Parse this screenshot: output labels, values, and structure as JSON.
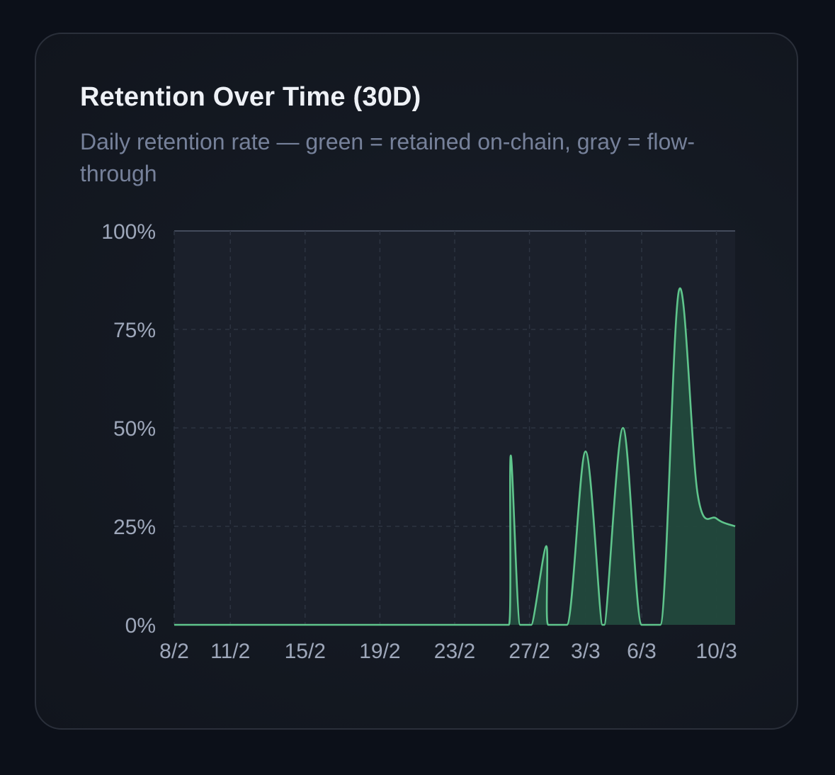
{
  "card": {
    "title": "Retention Over Time (30D)",
    "subtitle": "Daily retention rate — green = retained on-chain, gray = flow-through"
  },
  "colors": {
    "retained_line": "#5fc58c",
    "retained_fill": "#22493c",
    "grid": "#2d3441",
    "top_line": "#444b5c"
  },
  "chart_data": {
    "type": "area",
    "title": "Retention Over Time (30D)",
    "xlabel": "",
    "ylabel": "",
    "ylim": [
      0,
      100
    ],
    "yticks": [
      0,
      25,
      50,
      75,
      100
    ],
    "ytick_labels": [
      "0%",
      "25%",
      "50%",
      "75%",
      "100%"
    ],
    "x_range": [
      0,
      30
    ],
    "xticks": [
      0,
      3,
      7,
      11,
      15,
      19,
      22,
      25,
      29
    ],
    "xtick_labels": [
      "8/2",
      "11/2",
      "15/2",
      "19/2",
      "23/2",
      "27/2",
      "3/3",
      "6/3",
      "10/3"
    ],
    "grid": true,
    "series": [
      {
        "name": "Retained on-chain",
        "x": [
          0,
          1,
          2,
          3,
          4,
          5,
          6,
          7,
          8,
          9,
          10,
          11,
          12,
          13,
          14,
          15,
          16,
          17,
          17.9,
          18,
          18.5,
          19,
          19.1,
          19.9,
          20,
          21,
          22,
          22.9,
          23,
          24,
          25,
          26,
          27,
          28,
          29,
          30
        ],
        "values": [
          0,
          0,
          0,
          0,
          0,
          0,
          0,
          0,
          0,
          0,
          0,
          0,
          0,
          0,
          0,
          0,
          0,
          0,
          0,
          43,
          0,
          0,
          0,
          20,
          0,
          0,
          44,
          0,
          0,
          50,
          0,
          0,
          85,
          33,
          27,
          25
        ]
      }
    ]
  }
}
